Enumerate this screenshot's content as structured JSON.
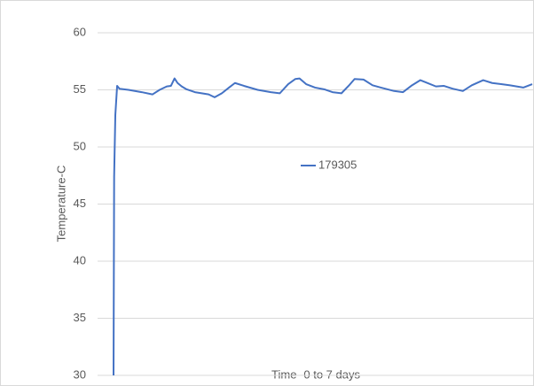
{
  "chart_data": {
    "type": "line",
    "x_label": "Time -0 to 7 days",
    "y_label": "Temperature-C",
    "x": [
      0,
      0.01,
      0.03,
      0.06,
      0.1,
      0.25,
      0.47,
      0.65,
      0.77,
      0.89,
      0.96,
      1.02,
      1.07,
      1.14,
      1.22,
      1.36,
      1.59,
      1.69,
      1.81,
      1.93,
      2.03,
      2.18,
      2.41,
      2.63,
      2.78,
      2.92,
      3.04,
      3.11,
      3.22,
      3.37,
      3.52,
      3.66,
      3.81,
      3.93,
      4.03,
      4.18,
      4.33,
      4.47,
      4.69,
      4.84,
      4.99,
      5.13,
      5.25,
      5.39,
      5.52,
      5.67,
      5.84,
      5.99,
      6.18,
      6.33,
      6.48,
      6.63,
      6.85,
      7.0
    ],
    "series": [
      {
        "name": "179305",
        "color": "#4472c4",
        "values": [
          30,
          47.4,
          52.8,
          55.35,
          55.1,
          55.0,
          54.8,
          54.6,
          55.0,
          55.3,
          55.35,
          56.0,
          55.6,
          55.3,
          55.05,
          54.8,
          54.6,
          54.35,
          54.7,
          55.2,
          55.6,
          55.35,
          55.0,
          54.8,
          54.7,
          55.5,
          55.95,
          56.0,
          55.5,
          55.2,
          55.05,
          54.8,
          54.7,
          55.35,
          55.95,
          55.9,
          55.4,
          55.2,
          54.9,
          54.8,
          55.4,
          55.85,
          55.6,
          55.3,
          55.35,
          55.1,
          54.9,
          55.4,
          55.85,
          55.6,
          55.5,
          55.4,
          55.2,
          55.5
        ]
      }
    ],
    "xlim": [
      0,
      7
    ],
    "ylim": [
      30,
      60
    ],
    "yticks": [
      30,
      35,
      40,
      45,
      50,
      55,
      60
    ],
    "grid": true
  }
}
